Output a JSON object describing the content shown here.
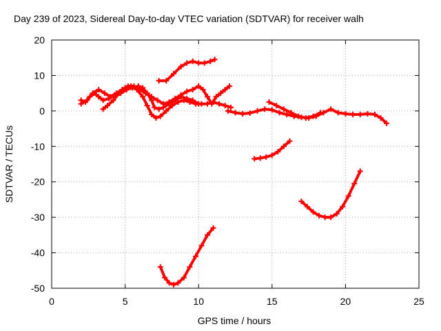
{
  "chart_data": {
    "type": "scatter",
    "title": "Day 239 of 2023, Sidereal Day-to-day VTEC variation (SDTVAR) for receiver walh",
    "xlabel": "GPS time / hours",
    "ylabel": "SDTVAR / TECUs",
    "xlim": [
      0,
      25
    ],
    "ylim": [
      -50,
      20
    ],
    "xticks": [
      0,
      5,
      10,
      15,
      20,
      25
    ],
    "yticks": [
      -50,
      -40,
      -30,
      -20,
      -10,
      0,
      10,
      20
    ],
    "grid": true,
    "legend": "none",
    "marker": "plus",
    "color": "#ff0000",
    "series": [
      {
        "x": [
          2.0,
          2.3,
          2.6,
          2.9,
          3.2,
          3.5,
          3.9,
          4.3,
          4.7,
          5.1,
          5.5,
          5.9,
          6.2,
          6.5,
          6.8,
          7.0,
          7.3,
          7.6,
          8.0,
          8.4,
          8.8,
          9.2,
          9.6,
          10.0
        ],
        "y": [
          3,
          2.5,
          4,
          5,
          4,
          3,
          3.5,
          4.5,
          5,
          6,
          6.5,
          7,
          6.5,
          5,
          3,
          1,
          0.5,
          1,
          2,
          3,
          4,
          3.5,
          3,
          2
        ]
      },
      {
        "x": [
          2.0,
          2.4,
          2.8,
          3.2,
          3.6,
          4.0,
          4.4,
          4.8,
          5.2,
          5.6,
          6.0,
          6.4,
          6.8,
          7.2,
          7.6,
          8.0,
          8.4,
          8.8,
          9.2,
          9.6,
          10.0,
          10.3,
          10.6,
          10.9,
          11.2,
          11.5,
          11.8,
          12.1
        ],
        "y": [
          2,
          3,
          5,
          6,
          5,
          4,
          5,
          6,
          7,
          7,
          6,
          5,
          4,
          3,
          2,
          2.5,
          3.5,
          4.5,
          5.5,
          6,
          7,
          6,
          4,
          2,
          4,
          5,
          6,
          7
        ]
      },
      {
        "x": [
          3.5,
          3.8,
          4.2,
          4.6,
          5.0,
          5.4,
          5.8,
          6.2,
          6.5,
          6.8,
          7.1,
          7.4,
          7.8,
          8.2,
          8.6,
          9.0,
          9.4,
          9.8,
          10.2,
          10.6,
          11.0,
          11.4,
          11.8,
          12.2
        ],
        "y": [
          0.5,
          1.5,
          3,
          5,
          6.5,
          7,
          6,
          4,
          1.5,
          -1,
          -2,
          -1.5,
          0,
          1.5,
          2.5,
          3,
          2.5,
          2,
          2,
          2,
          2.5,
          2,
          1.5,
          1
        ]
      },
      {
        "x": [
          12.0,
          12.5,
          13.0,
          13.5,
          14.0,
          14.5,
          15.0,
          15.5,
          16.0,
          16.5,
          17.0,
          17.5,
          18.0,
          18.5,
          19.0,
          19.5,
          20.0,
          20.5,
          21.0,
          21.5,
          22.0,
          22.4,
          22.8
        ],
        "y": [
          0,
          -0.5,
          -0.8,
          -0.6,
          0,
          0.5,
          0.3,
          -0.5,
          -1,
          -1.5,
          -1.8,
          -2,
          -1.5,
          -0.5,
          0.5,
          -0.5,
          -0.8,
          -1,
          -1,
          -0.8,
          -1,
          -2,
          -3.5
        ]
      },
      {
        "x": [
          14.8,
          15.3,
          15.8,
          16.3,
          16.8,
          17.3,
          17.8,
          18.3
        ],
        "y": [
          2.5,
          1.5,
          0.5,
          -0.5,
          -1.5,
          -2,
          -1.5,
          -0.5
        ]
      },
      {
        "x": [
          7.3,
          7.8,
          8.3,
          8.8,
          9.2,
          9.6,
          10.0,
          10.4,
          10.8,
          11.1
        ],
        "y": [
          8.5,
          8.5,
          10.5,
          12.5,
          13.5,
          14,
          13.5,
          13.5,
          14,
          14.5
        ]
      },
      {
        "x": [
          13.8,
          14.2,
          14.6,
          15.0,
          15.4,
          15.8,
          16.2
        ],
        "y": [
          -13.5,
          -13.3,
          -13,
          -12.5,
          -11.5,
          -10,
          -8.5
        ]
      },
      {
        "x": [
          17.0,
          17.4,
          17.8,
          18.2,
          18.6,
          19.0,
          19.4,
          19.8,
          20.2,
          20.6,
          21.0
        ],
        "y": [
          -25.5,
          -27,
          -28.5,
          -29.5,
          -30,
          -30,
          -29,
          -27,
          -24,
          -20.5,
          -17
        ]
      },
      {
        "x": [
          7.4,
          7.7,
          8.0,
          8.3,
          8.6,
          9.0,
          9.4,
          9.8,
          10.2,
          10.6,
          11.0
        ],
        "y": [
          -44,
          -47,
          -48.5,
          -49,
          -48.5,
          -47,
          -44,
          -41,
          -38,
          -35,
          -33
        ]
      }
    ]
  }
}
